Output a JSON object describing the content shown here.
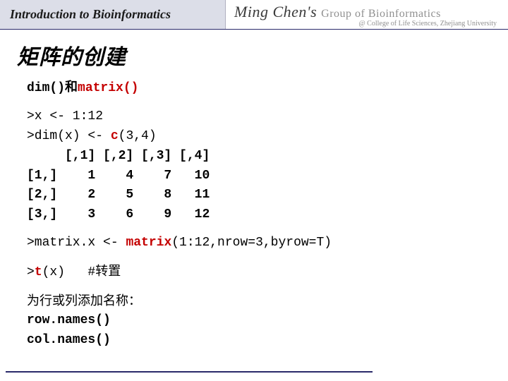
{
  "header": {
    "left": "Introduction to Bioinformatics",
    "ming": "Ming Chen's",
    "group": "Group of Bioinformatics",
    "sub": "@ College of Life Sciences, Zhejiang University"
  },
  "title": "矩阵的创建",
  "intro": {
    "dim": "dim()",
    "and": "和",
    "matrix": "matrix()"
  },
  "code1": {
    "l1": ">x <- 1:12",
    "l2a": ">dim(x) <- ",
    "l2b": "c",
    "l2c": "(3,4)",
    "head": "     [,1] [,2] [,3] [,4]",
    "r1": "[1,]    1    4    7   10",
    "r2": "[2,]    2    5    8   11",
    "r3": "[3,]    3    6    9   12"
  },
  "code2": {
    "a": ">matrix.x <- ",
    "b": "matrix",
    "c": "(1:12,nrow=3,byrow=T)"
  },
  "code3": {
    "a": ">",
    "b": "t",
    "c": "(x)   #",
    "d": "转置"
  },
  "names": {
    "intro": "为行或列添加名称：",
    "row": "row.names()",
    "col": "col.names()"
  },
  "colors": {
    "red": "#c40000",
    "headerbg": "#dcdee8",
    "rule": "#2a2a6a"
  }
}
